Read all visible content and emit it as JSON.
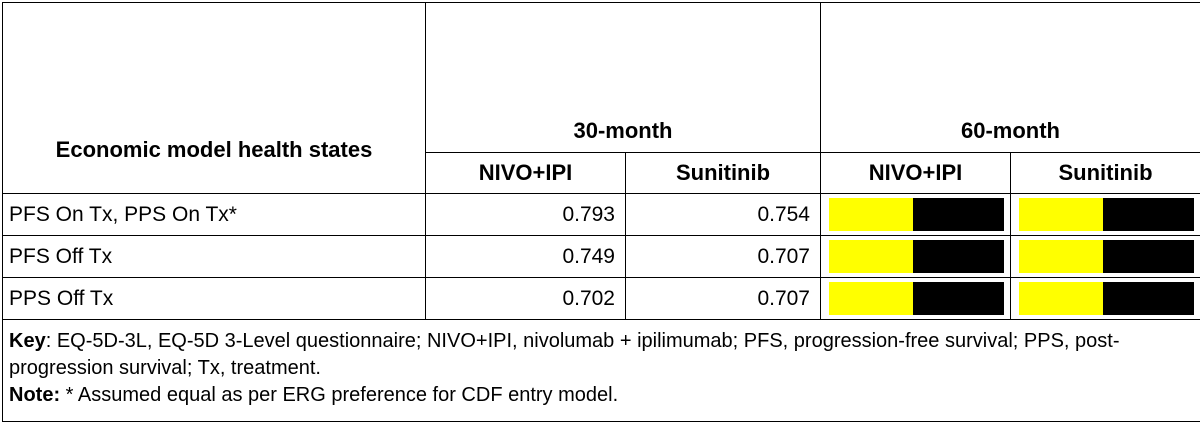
{
  "table": {
    "header": {
      "row_label": "Economic model health states",
      "groups": [
        "30-month",
        "60-month"
      ],
      "columns": [
        "NIVO+IPI",
        "Sunitinib",
        "NIVO+IPI",
        "Sunitinib"
      ]
    },
    "rows": [
      {
        "label": "PFS On Tx, PPS On Tx*",
        "values": [
          0.793,
          0.754
        ]
      },
      {
        "label": "PFS Off Tx",
        "values": [
          0.749,
          0.707
        ]
      },
      {
        "label": "PPS Off Tx",
        "values": [
          0.702,
          0.707
        ]
      }
    ]
  },
  "footnotes": {
    "key_label": "Key",
    "key_text": ": EQ-5D-3L, EQ-5D 3-Level questionnaire; NIVO+IPI, nivolumab + ipilimumab; PFS, progression-free survival; PPS, post-progression survival; Tx, treatment.",
    "note_label": "Note:",
    "note_text": " * Assumed equal as per ERG preference for CDF entry model."
  }
}
